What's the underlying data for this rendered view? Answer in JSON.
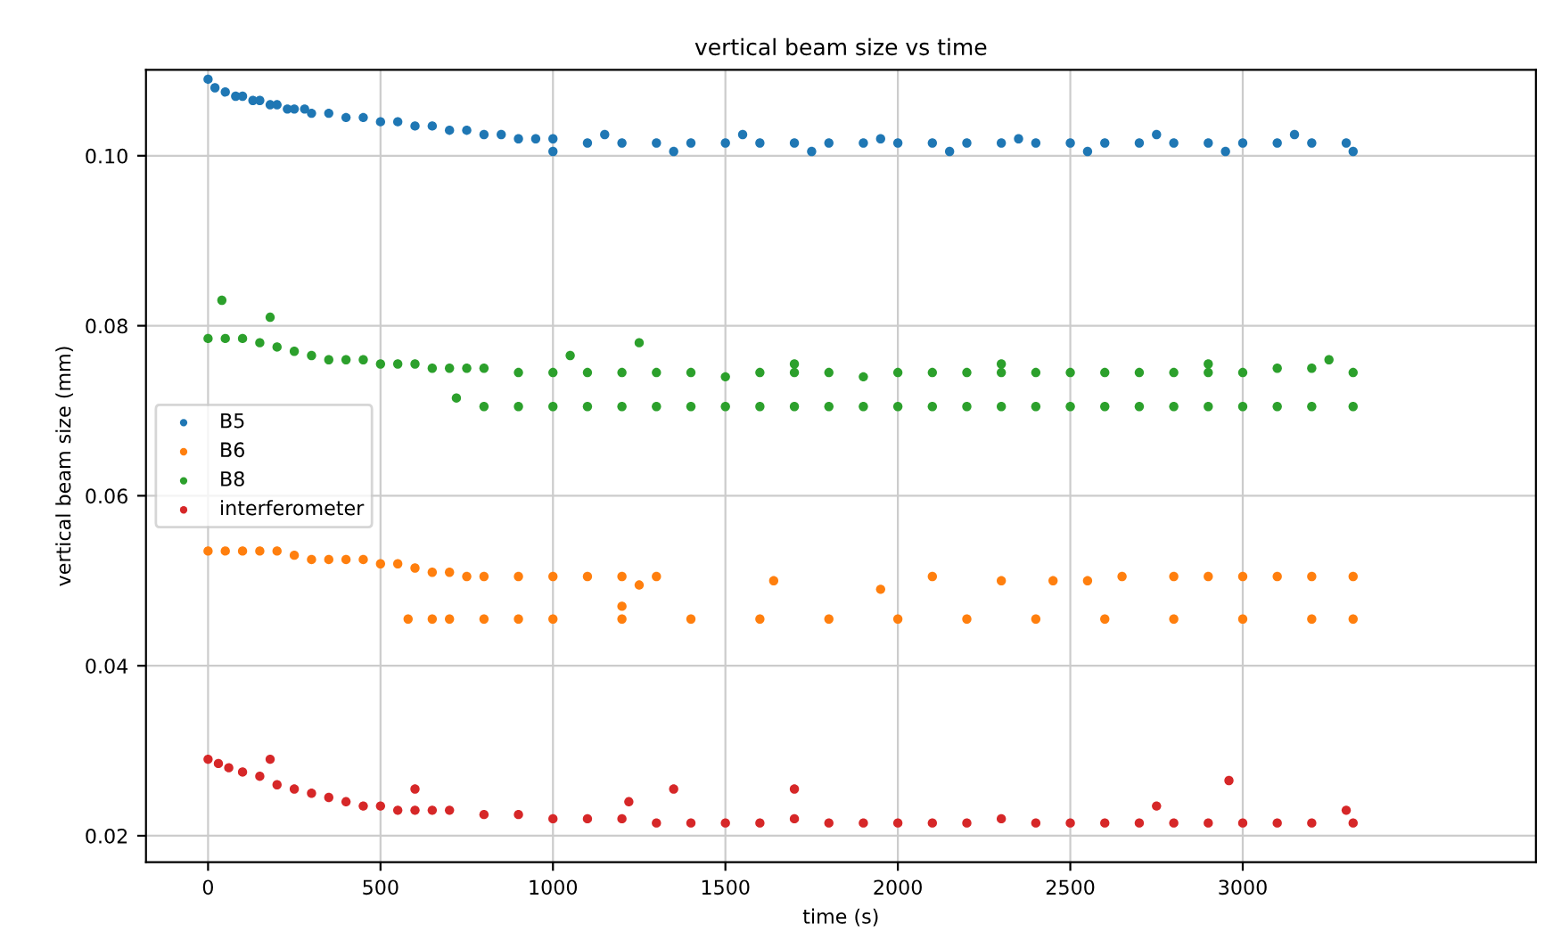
{
  "chart_data": {
    "type": "scatter",
    "title": "vertical beam size vs time",
    "xlabel": "time (s)",
    "ylabel": "vertical beam size (mm)",
    "xlim": [
      -180,
      3850
    ],
    "ylim": [
      0.0169,
      0.1101
    ],
    "xticks": [
      0,
      500,
      1000,
      1500,
      2000,
      2500,
      3000
    ],
    "yticks": [
      {
        "value": 0.02,
        "label": "0.02"
      },
      {
        "value": 0.04,
        "label": "0.04"
      },
      {
        "value": 0.06,
        "label": "0.06"
      },
      {
        "value": 0.08,
        "label": "0.08"
      },
      {
        "value": 0.1,
        "label": "0.10"
      }
    ],
    "grid": true,
    "legend": "left",
    "marker": "circle",
    "series": [
      {
        "name": "B5",
        "color": "#1f77b4",
        "x": [
          0,
          20,
          50,
          80,
          100,
          130,
          150,
          180,
          200,
          230,
          250,
          280,
          300,
          350,
          400,
          450,
          500,
          550,
          600,
          650,
          700,
          750,
          800,
          850,
          900,
          950,
          1000,
          1100,
          1200,
          1300,
          1400,
          1500,
          1600,
          1700,
          1800,
          1900,
          2000,
          2100,
          2200,
          2300,
          2400,
          2500,
          2600,
          2700,
          2800,
          2900,
          3000,
          3100,
          3200,
          3300,
          1000,
          1150,
          1350,
          1550,
          1750,
          1950,
          2150,
          2350,
          2550,
          2750,
          2950,
          3150,
          3320
        ],
        "values": [
          0.109,
          0.108,
          0.1075,
          0.107,
          0.107,
          0.1065,
          0.1065,
          0.106,
          0.106,
          0.1055,
          0.1055,
          0.1055,
          0.105,
          0.105,
          0.1045,
          0.1045,
          0.104,
          0.104,
          0.1035,
          0.1035,
          0.103,
          0.103,
          0.1025,
          0.1025,
          0.102,
          0.102,
          0.102,
          0.1015,
          0.1015,
          0.1015,
          0.1015,
          0.1015,
          0.1015,
          0.1015,
          0.1015,
          0.1015,
          0.1015,
          0.1015,
          0.1015,
          0.1015,
          0.1015,
          0.1015,
          0.1015,
          0.1015,
          0.1015,
          0.1015,
          0.1015,
          0.1015,
          0.1015,
          0.1015,
          0.1005,
          0.1025,
          0.1005,
          0.1025,
          0.1005,
          0.102,
          0.1005,
          0.102,
          0.1005,
          0.1025,
          0.1005,
          0.1025,
          0.1005
        ]
      },
      {
        "name": "B6",
        "color": "#ff7f0e",
        "x": [
          0,
          50,
          100,
          150,
          200,
          250,
          300,
          350,
          400,
          450,
          500,
          550,
          600,
          650,
          700,
          750,
          800,
          900,
          1000,
          1100,
          1200,
          1250,
          1300,
          580,
          650,
          700,
          800,
          900,
          1000,
          1200,
          1400,
          1600,
          1800,
          2000,
          2200,
          2400,
          2600,
          2800,
          3000,
          3200,
          3320,
          1200,
          1640,
          1950,
          2100,
          2300,
          2450,
          2550,
          2650,
          2800,
          2900,
          3000,
          3100,
          3200,
          3320
        ],
        "values": [
          0.0535,
          0.0535,
          0.0535,
          0.0535,
          0.0535,
          0.053,
          0.0525,
          0.0525,
          0.0525,
          0.0525,
          0.052,
          0.052,
          0.0515,
          0.051,
          0.051,
          0.0505,
          0.0505,
          0.0505,
          0.0505,
          0.0505,
          0.0505,
          0.0495,
          0.0505,
          0.0455,
          0.0455,
          0.0455,
          0.0455,
          0.0455,
          0.0455,
          0.0455,
          0.0455,
          0.0455,
          0.0455,
          0.0455,
          0.0455,
          0.0455,
          0.0455,
          0.0455,
          0.0455,
          0.0455,
          0.0455,
          0.047,
          0.05,
          0.049,
          0.0505,
          0.05,
          0.05,
          0.05,
          0.0505,
          0.0505,
          0.0505,
          0.0505,
          0.0505,
          0.0505,
          0.0505
        ]
      },
      {
        "name": "B8",
        "color": "#2ca02c",
        "x": [
          0,
          50,
          100,
          150,
          200,
          250,
          300,
          350,
          400,
          450,
          500,
          550,
          600,
          650,
          700,
          750,
          800,
          900,
          1000,
          1100,
          1200,
          1300,
          1400,
          1500,
          1600,
          1700,
          1800,
          1900,
          2000,
          2100,
          2200,
          2300,
          2400,
          2500,
          2600,
          2700,
          2800,
          2900,
          3000,
          3100,
          3200,
          3320,
          40,
          180,
          1250,
          720,
          800,
          900,
          1000,
          1100,
          1200,
          1300,
          1400,
          1500,
          1600,
          1700,
          1800,
          1900,
          2000,
          2100,
          2200,
          2300,
          2400,
          2500,
          2600,
          2700,
          2800,
          2900,
          3000,
          3100,
          3200,
          3320,
          1050,
          1700,
          2300,
          2900,
          3250
        ],
        "values": [
          0.0785,
          0.0785,
          0.0785,
          0.078,
          0.0775,
          0.077,
          0.0765,
          0.076,
          0.076,
          0.076,
          0.0755,
          0.0755,
          0.0755,
          0.075,
          0.075,
          0.075,
          0.075,
          0.0745,
          0.0745,
          0.0745,
          0.0745,
          0.0745,
          0.0745,
          0.074,
          0.0745,
          0.0745,
          0.0745,
          0.074,
          0.0745,
          0.0745,
          0.0745,
          0.0745,
          0.0745,
          0.0745,
          0.0745,
          0.0745,
          0.0745,
          0.0745,
          0.0745,
          0.075,
          0.075,
          0.0745,
          0.083,
          0.081,
          0.078,
          0.0715,
          0.0705,
          0.0705,
          0.0705,
          0.0705,
          0.0705,
          0.0705,
          0.0705,
          0.0705,
          0.0705,
          0.0705,
          0.0705,
          0.0705,
          0.0705,
          0.0705,
          0.0705,
          0.0705,
          0.0705,
          0.0705,
          0.0705,
          0.0705,
          0.0705,
          0.0705,
          0.0705,
          0.0705,
          0.0705,
          0.0705,
          0.0765,
          0.0755,
          0.0755,
          0.0755,
          0.076
        ]
      },
      {
        "name": "interferometer",
        "color": "#d62728",
        "x": [
          0,
          30,
          60,
          100,
          150,
          200,
          250,
          300,
          350,
          400,
          450,
          500,
          550,
          600,
          650,
          700,
          800,
          900,
          1000,
          1100,
          1200,
          1300,
          1400,
          1500,
          1600,
          1700,
          1800,
          1900,
          2000,
          2100,
          2200,
          2300,
          2400,
          2500,
          2600,
          2700,
          2800,
          2900,
          3000,
          3100,
          3200,
          3320,
          180,
          600,
          1220,
          1350,
          1700,
          2750,
          2960,
          3300
        ],
        "values": [
          0.029,
          0.0285,
          0.028,
          0.0275,
          0.027,
          0.026,
          0.0255,
          0.025,
          0.0245,
          0.024,
          0.0235,
          0.0235,
          0.023,
          0.023,
          0.023,
          0.023,
          0.0225,
          0.0225,
          0.022,
          0.022,
          0.022,
          0.0215,
          0.0215,
          0.0215,
          0.0215,
          0.022,
          0.0215,
          0.0215,
          0.0215,
          0.0215,
          0.0215,
          0.022,
          0.0215,
          0.0215,
          0.0215,
          0.0215,
          0.0215,
          0.0215,
          0.0215,
          0.0215,
          0.0215,
          0.0215,
          0.029,
          0.0255,
          0.024,
          0.0255,
          0.0255,
          0.0235,
          0.0265,
          0.023
        ]
      }
    ]
  }
}
